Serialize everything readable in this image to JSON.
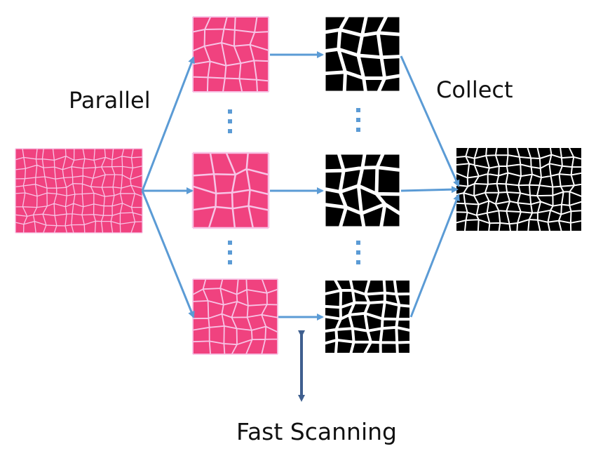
{
  "labels": {
    "parallel": "Parallel",
    "collect": "Collect",
    "fast_scanning": "Fast Scanning"
  },
  "colors": {
    "arrow": "#5b9bd5",
    "scan_arrow": "#3f5f8f",
    "tissue_background": "#f0427f",
    "tissue_membrane": "#f7c4e6",
    "mask_background": "#000000",
    "mask_boundary": "#ffffff"
  },
  "items": {
    "input_image": "tissue-image",
    "patches": [
      "tissue-patch",
      "tissue-patch",
      "tissue-patch"
    ],
    "masks": [
      "segmentation-mask",
      "segmentation-mask",
      "segmentation-mask"
    ],
    "output_image": "segmentation-mask"
  }
}
